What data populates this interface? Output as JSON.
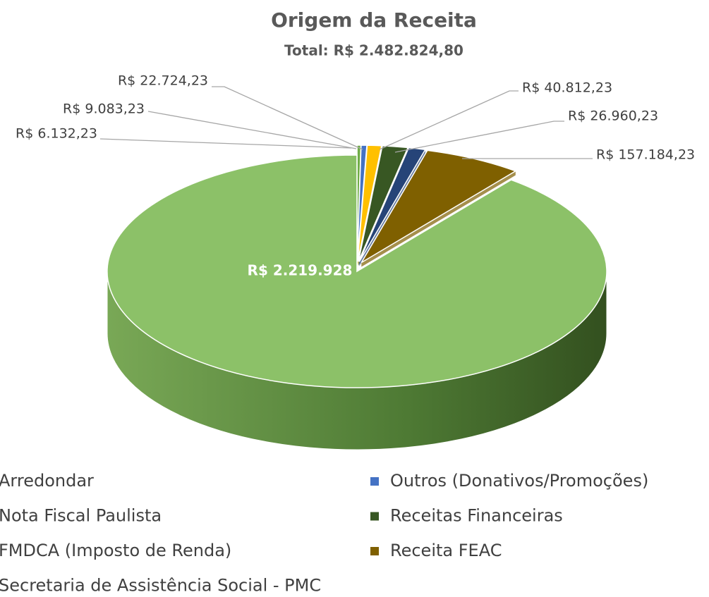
{
  "chart_data": {
    "type": "pie3d",
    "title": "Origem da Receita",
    "subtitle": "Total: R$ 2.482.824,80",
    "series": [
      {
        "name": "Arredondar",
        "color": "#70ad47",
        "values": [
          6132.23
        ],
        "value_labels": [
          "R$ 6.132,23"
        ]
      },
      {
        "name": "Outros (Donativos/Promoções)",
        "color": "#4472c4",
        "values": [
          9083.23
        ],
        "value_labels": [
          "R$ 9.083,23"
        ]
      },
      {
        "name": "Nota Fiscal Paulista",
        "color": "#ffc000",
        "values": [
          22724.23
        ],
        "value_labels": [
          "R$ 22.724,23"
        ]
      },
      {
        "name": "Receitas Financeiras",
        "color": "#385723",
        "values": [
          40812.23
        ],
        "value_labels": [
          "R$ 40.812,23"
        ]
      },
      {
        "name": "FMDCA (Imposto de Renda)",
        "color": "#264478",
        "values": [
          26960.23
        ],
        "value_labels": [
          "R$ 26.960,23"
        ]
      },
      {
        "name": "Receita FEAC",
        "color": "#7f6000",
        "values": [
          157184.23
        ],
        "value_labels": [
          "R$ 157.184,23"
        ]
      },
      {
        "name": "Secretaria de Assistência Social - PMC",
        "color": "#8cc168",
        "values": [
          2219928.42
        ],
        "value_labels": [
          "R$ 2.219.928"
        ]
      }
    ],
    "legend": "bottom"
  }
}
